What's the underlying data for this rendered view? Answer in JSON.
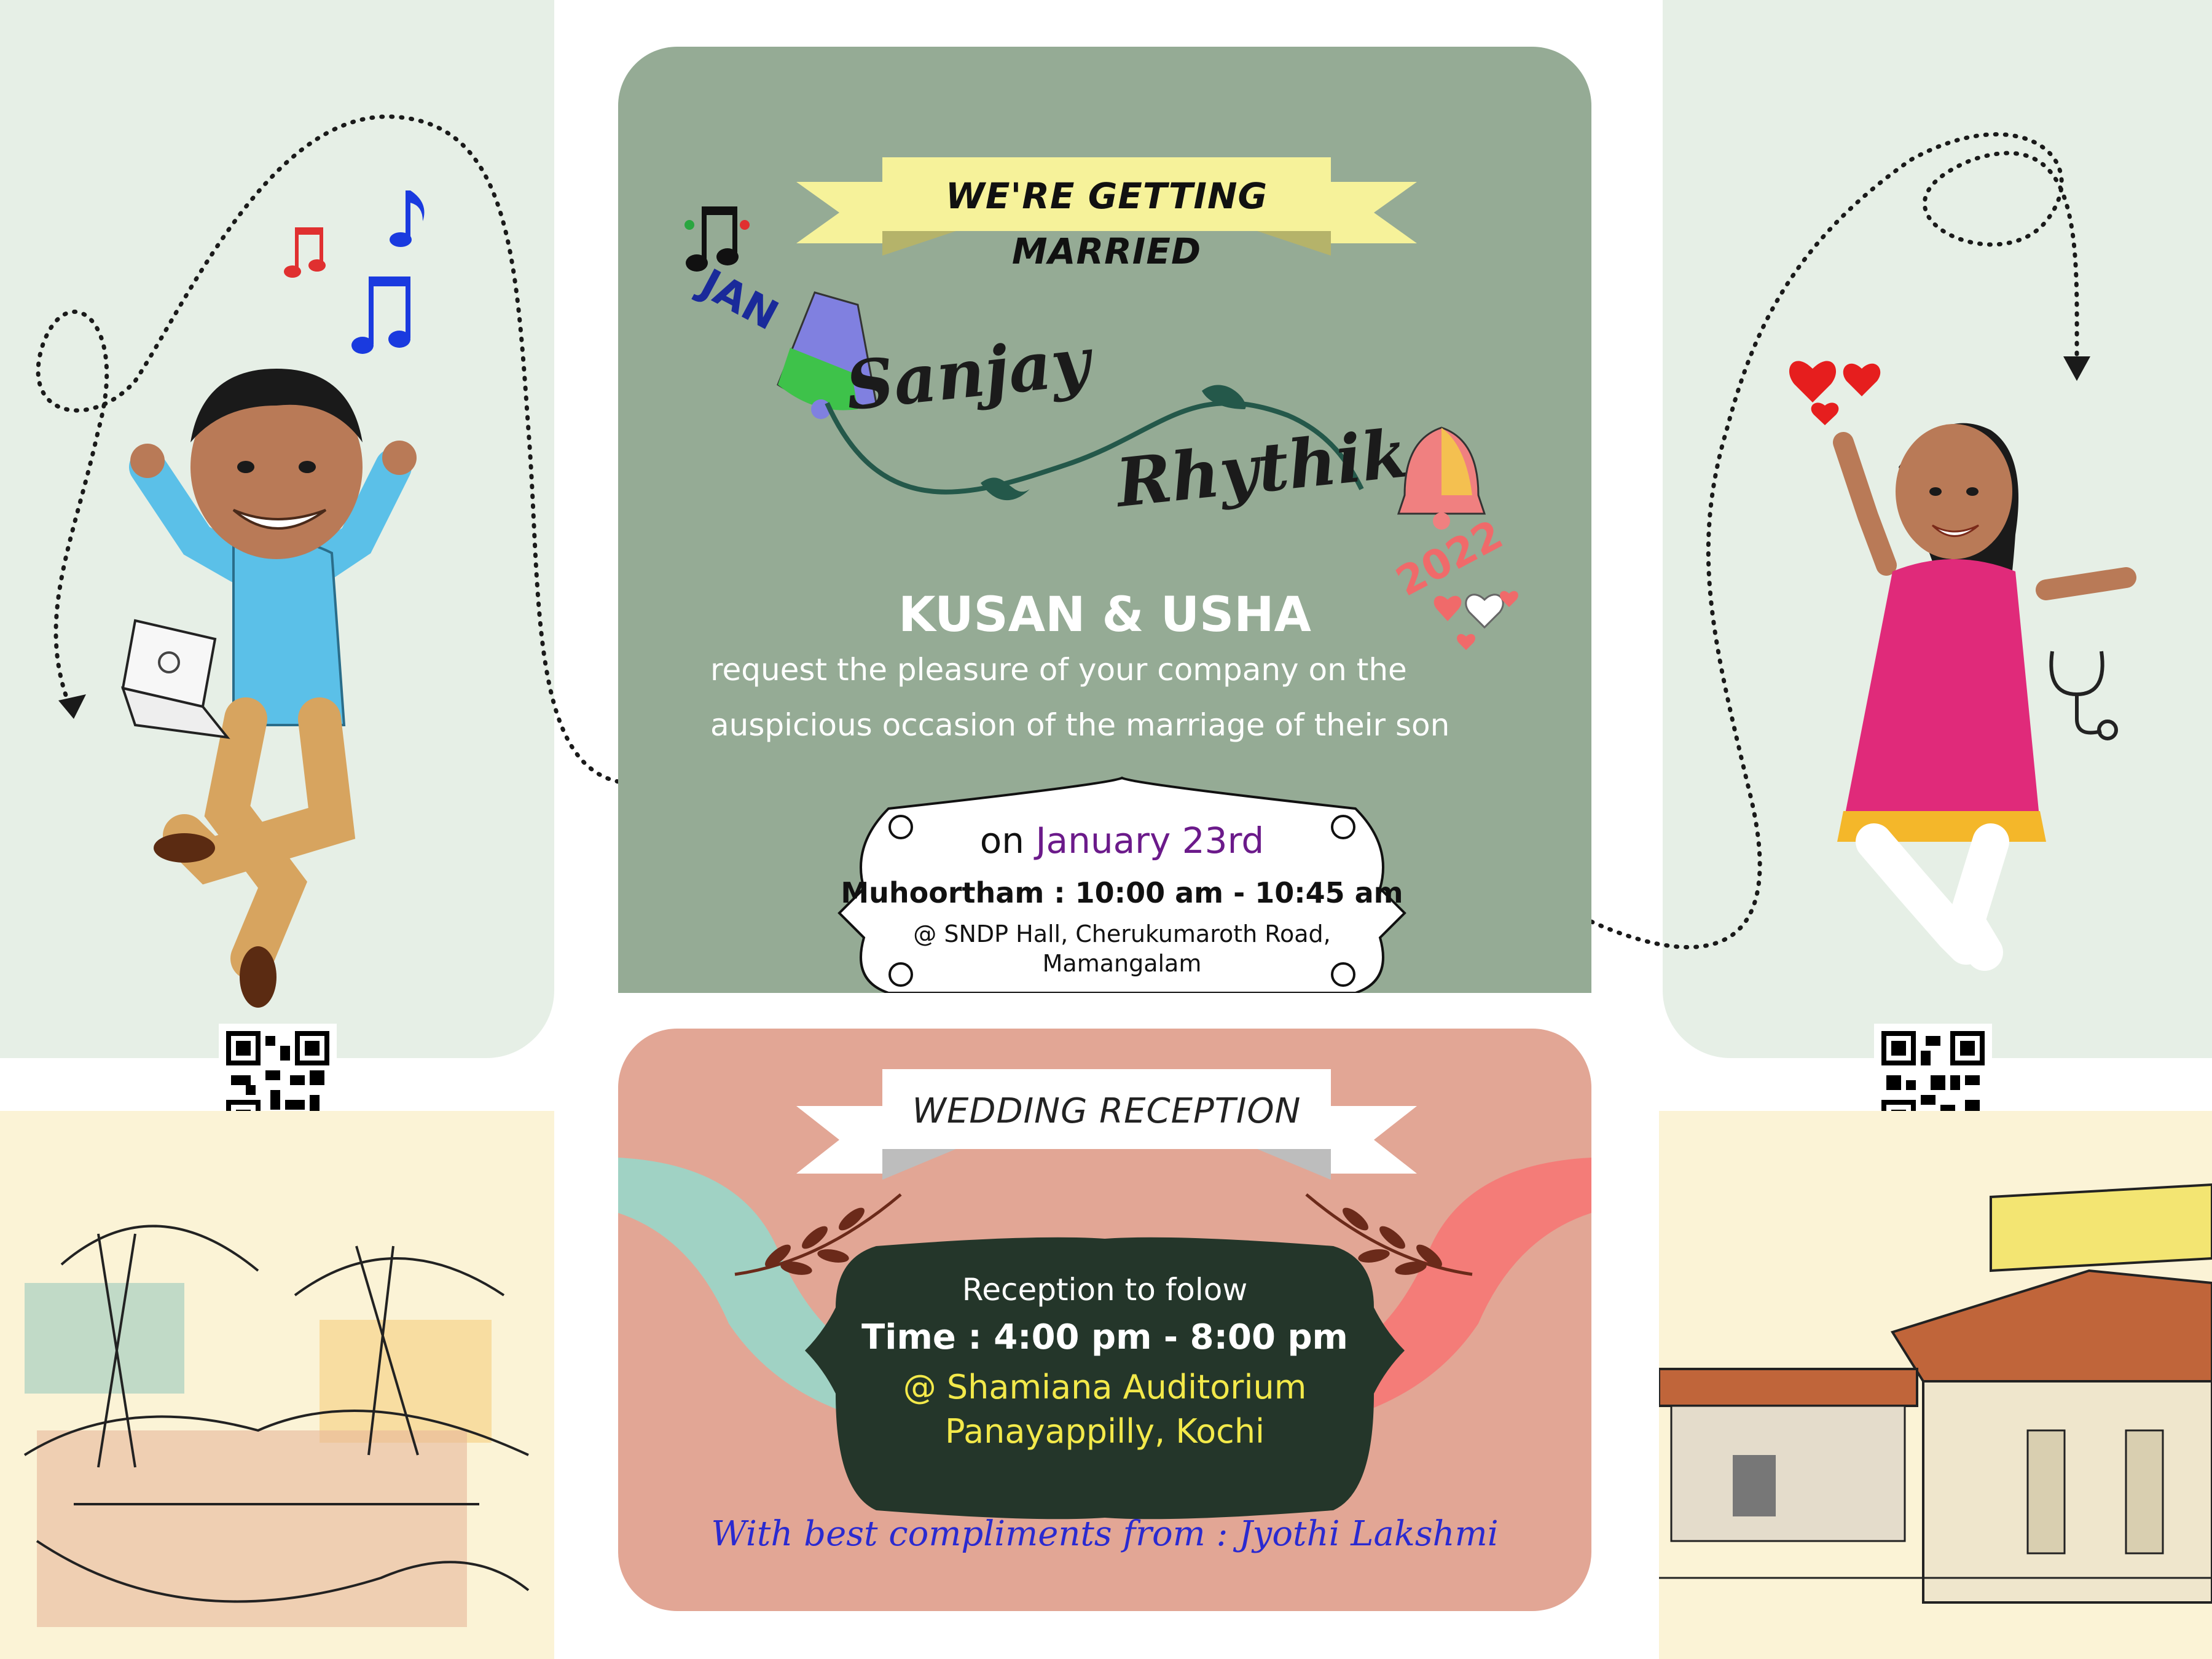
{
  "header": {
    "banner": "WE'RE GETTING MARRIED",
    "month": "JAN",
    "year": "2022",
    "groom": "Sanjay",
    "bride": "Rhythika"
  },
  "invitation": {
    "hosts": "KUSAN & USHA",
    "line1": "request the pleasure of your company on the",
    "line2": "auspicious occasion of the marriage of their son"
  },
  "ceremony": {
    "date_prefix": "on",
    "date": "January 23rd",
    "muhoortham": "Muhoortham : 10:00 am - 10:45 am",
    "venue_line1": "@ SNDP Hall, Cherukumaroth Road,",
    "venue_line2": "Mamangalam"
  },
  "reception": {
    "banner": "WEDDING RECEPTION",
    "follow": "Reception to folow",
    "time": "Time : 4:00 pm - 8:00 pm",
    "venue_line1": "@ Shamiana Auditorium",
    "venue_line2": "Panayappilly, Kochi",
    "compliments": "With best compliments from : Jyothi Lakshmi"
  },
  "colors": {
    "green_card": "#95ab95",
    "pink_card": "#e2a695",
    "banner_yellow": "#f6f29a",
    "date_purple": "#6b1a8a",
    "reception_yellow": "#f3e94a",
    "compliments_blue": "#2a2ad0"
  }
}
